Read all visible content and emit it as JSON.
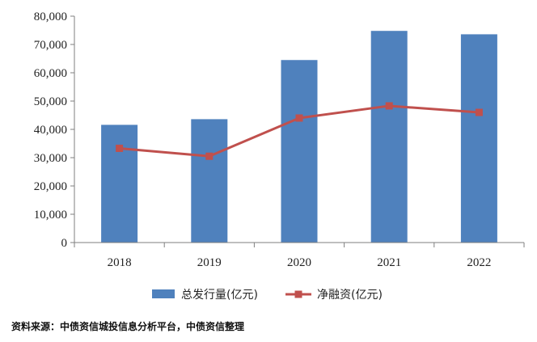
{
  "chart_data": {
    "type": "bar",
    "categories": [
      "2018",
      "2019",
      "2020",
      "2021",
      "2022"
    ],
    "series": [
      {
        "name": "总发行量(亿元)",
        "type": "bar",
        "color": "#4F81BD",
        "values": [
          41600,
          43600,
          64500,
          74800,
          73600
        ]
      },
      {
        "name": "净融资(亿元)",
        "type": "line",
        "color": "#C0504D",
        "marker": "square",
        "values": [
          33300,
          30500,
          44000,
          48300,
          46000
        ]
      }
    ],
    "ylim": [
      0,
      80000
    ],
    "yticks": [
      0,
      10000,
      20000,
      30000,
      40000,
      50000,
      60000,
      70000,
      80000
    ],
    "ytick_labels": [
      "0",
      "10,000",
      "20,000",
      "30,000",
      "40,000",
      "50,000",
      "60,000",
      "70,000",
      "80,000"
    ],
    "legend": "bottom-center",
    "grid": false
  },
  "source_note": "资料来源：中债资信城投信息分析平台，中债资信整理"
}
